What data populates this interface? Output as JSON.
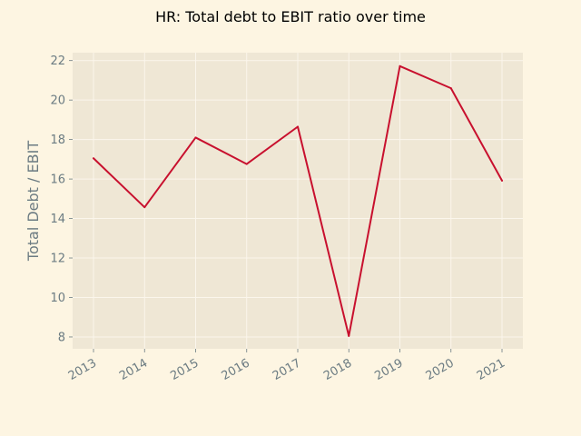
{
  "chart_data": {
    "type": "line",
    "title": "HR: Total debt to EBIT ratio over time",
    "xlabel": "",
    "ylabel": "Total Debt / EBIT",
    "x": [
      "2013",
      "2014",
      "2015",
      "2016",
      "2017",
      "2018",
      "2019",
      "2020",
      "2021"
    ],
    "series": [
      {
        "values": [
          17.05,
          14.57,
          18.1,
          16.76,
          18.65,
          8.05,
          21.72,
          20.6,
          15.92
        ],
        "color": "#c8102e"
      }
    ],
    "yticks": [
      8,
      10,
      12,
      14,
      16,
      18,
      20,
      22
    ],
    "ylim": [
      7.4,
      22.4
    ],
    "grid": true,
    "legend": "none",
    "colors": {
      "background": "#fdf5e2",
      "plot_background": "#efe7d5",
      "grid": "#fbf6ec",
      "tick_text": "#6b7b82",
      "line": "#c8102e"
    }
  }
}
